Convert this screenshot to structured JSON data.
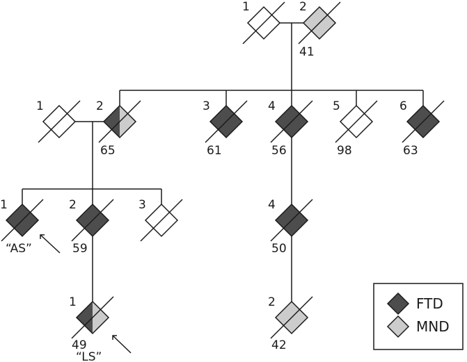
{
  "colors": {
    "ftd": "#4d4d4d",
    "mnd": "#cccccc",
    "unaffected": "#ffffff",
    "ink": "#1a1a1a"
  },
  "individuals": [
    {
      "id": "g1-1",
      "number": "1",
      "status": "unaffected",
      "deceased": true,
      "age": ""
    },
    {
      "id": "g1-2",
      "number": "2",
      "status": "mnd",
      "deceased": true,
      "age": "41"
    },
    {
      "id": "g2-s1",
      "number": "1",
      "status": "unaffected",
      "deceased": true,
      "age": ""
    },
    {
      "id": "g2-2",
      "number": "2",
      "status": "ftd-mnd",
      "deceased": true,
      "age": "65"
    },
    {
      "id": "g2-3",
      "number": "3",
      "status": "ftd",
      "deceased": true,
      "age": "61"
    },
    {
      "id": "g2-4",
      "number": "4",
      "status": "ftd",
      "deceased": true,
      "age": "56"
    },
    {
      "id": "g2-5",
      "number": "5",
      "status": "unaffected",
      "deceased": true,
      "age": "98"
    },
    {
      "id": "g2-6",
      "number": "6",
      "status": "ftd",
      "deceased": true,
      "age": "63"
    },
    {
      "id": "g3-1",
      "number": "1",
      "status": "ftd",
      "deceased": true,
      "age": "",
      "tag": "“AS”"
    },
    {
      "id": "g3-2",
      "number": "2",
      "status": "ftd",
      "deceased": true,
      "age": "59"
    },
    {
      "id": "g3-3",
      "number": "3",
      "status": "unaffected",
      "deceased": true,
      "age": ""
    },
    {
      "id": "g3-4",
      "number": "4",
      "status": "ftd",
      "deceased": true,
      "age": "50"
    },
    {
      "id": "g4-1",
      "number": "1",
      "status": "ftd-mnd",
      "deceased": true,
      "age": "49",
      "tag": "“LS”"
    },
    {
      "id": "g4-2",
      "number": "2",
      "status": "mnd",
      "deceased": true,
      "age": "42"
    }
  ],
  "legend": [
    {
      "status": "ftd",
      "label": "FTD"
    },
    {
      "status": "mnd",
      "label": "MND"
    }
  ]
}
